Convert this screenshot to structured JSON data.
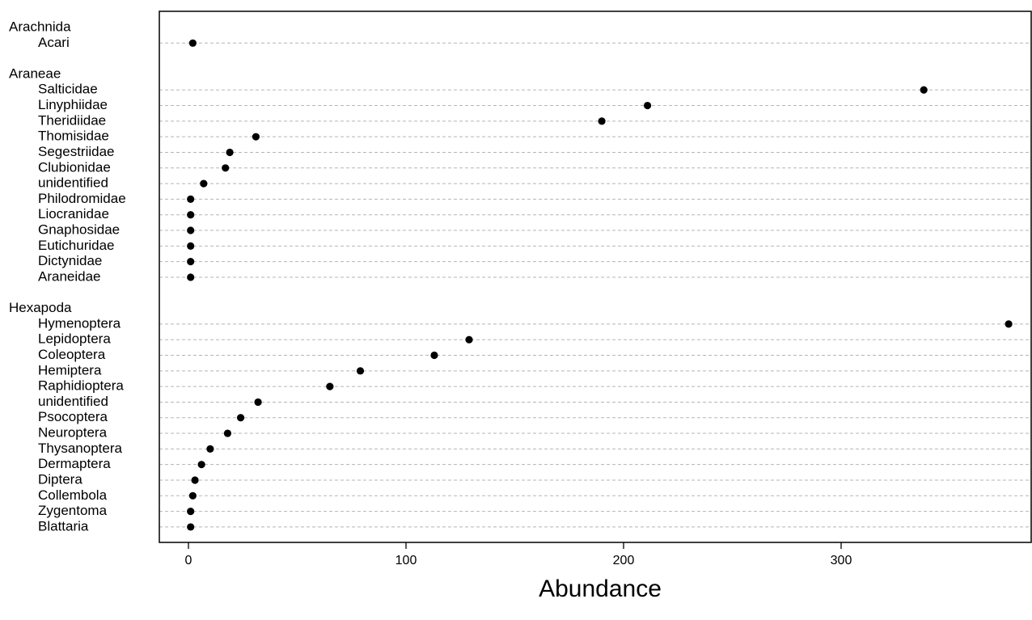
{
  "chart_data": {
    "type": "dotplot",
    "xlabel": "Abundance",
    "xlim": [
      -14,
      387
    ],
    "xticks": [
      0,
      100,
      200,
      300
    ],
    "grid": "dashed horizontal lines per row",
    "groups": [
      {
        "name": "Arachnida",
        "items": [
          {
            "label": "Acari",
            "value": 2
          }
        ]
      },
      {
        "name": "Araneae",
        "items": [
          {
            "label": "Salticidae",
            "value": 338
          },
          {
            "label": "Linyphiidae",
            "value": 211
          },
          {
            "label": "Theridiidae",
            "value": 190
          },
          {
            "label": "Thomisidae",
            "value": 31
          },
          {
            "label": "Segestriidae",
            "value": 19
          },
          {
            "label": "Clubionidae",
            "value": 17
          },
          {
            "label": "unidentified",
            "value": 7
          },
          {
            "label": "Philodromidae",
            "value": 1
          },
          {
            "label": "Liocranidae",
            "value": 1
          },
          {
            "label": "Gnaphosidae",
            "value": 1
          },
          {
            "label": "Eutichuridae",
            "value": 1
          },
          {
            "label": "Dictynidae",
            "value": 1
          },
          {
            "label": "Araneidae",
            "value": 1
          }
        ]
      },
      {
        "name": "Hexapoda",
        "items": [
          {
            "label": "Hymenoptera",
            "value": 377
          },
          {
            "label": "Lepidoptera",
            "value": 129
          },
          {
            "label": "Coleoptera",
            "value": 113
          },
          {
            "label": "Hemiptera",
            "value": 79
          },
          {
            "label": "Raphidioptera",
            "value": 65
          },
          {
            "label": "unidentified",
            "value": 32
          },
          {
            "label": "Psocoptera",
            "value": 24
          },
          {
            "label": "Neuroptera",
            "value": 18
          },
          {
            "label": "Thysanoptera",
            "value": 10
          },
          {
            "label": "Dermaptera",
            "value": 6
          },
          {
            "label": "Diptera",
            "value": 3
          },
          {
            "label": "Collembola",
            "value": 2
          },
          {
            "label": "Zygentoma",
            "value": 1
          },
          {
            "label": "Blattaria",
            "value": 1
          }
        ]
      }
    ]
  }
}
